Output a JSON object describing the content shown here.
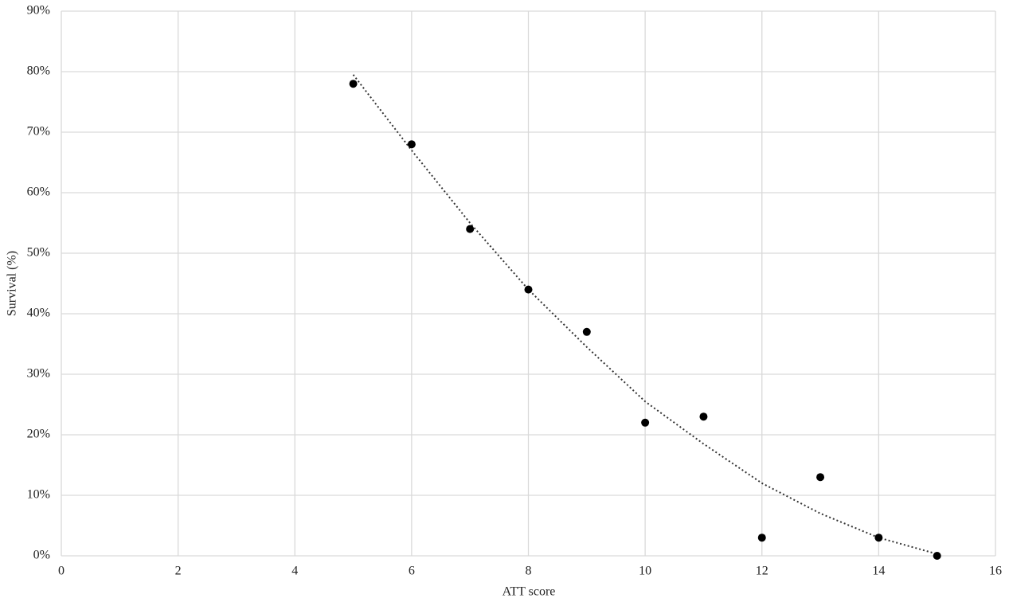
{
  "chart_data": {
    "type": "scatter",
    "xlabel": "ATT score",
    "ylabel": "Survival (%)",
    "x": [
      5,
      6,
      7,
      8,
      9,
      10,
      11,
      12,
      13,
      14,
      15
    ],
    "values": [
      78,
      68,
      54,
      44,
      37,
      22,
      23,
      3,
      13,
      3,
      0
    ],
    "color": "#000000",
    "trendline": {
      "x": [
        5,
        6,
        7,
        8,
        9,
        10,
        11,
        12,
        13,
        14,
        15
      ],
      "values": [
        79.5,
        67,
        55,
        44,
        34.5,
        25.5,
        18.5,
        12,
        7,
        3,
        0.3
      ],
      "color": "#333333",
      "style": "dotted"
    },
    "xlim": [
      0,
      16
    ],
    "xticks": [
      0,
      2,
      4,
      6,
      8,
      10,
      12,
      14,
      16
    ],
    "ylim": [
      0,
      90
    ],
    "yticks": [
      {
        "value": 0,
        "label": "0%"
      },
      {
        "value": 10,
        "label": "10%"
      },
      {
        "value": 20,
        "label": "20%"
      },
      {
        "value": 30,
        "label": "30%"
      },
      {
        "value": 40,
        "label": "40%"
      },
      {
        "value": 50,
        "label": "50%"
      },
      {
        "value": 60,
        "label": "60%"
      },
      {
        "value": 70,
        "label": "70%"
      },
      {
        "value": 80,
        "label": "80%"
      },
      {
        "value": 90,
        "label": "90%"
      }
    ],
    "grid": true
  }
}
